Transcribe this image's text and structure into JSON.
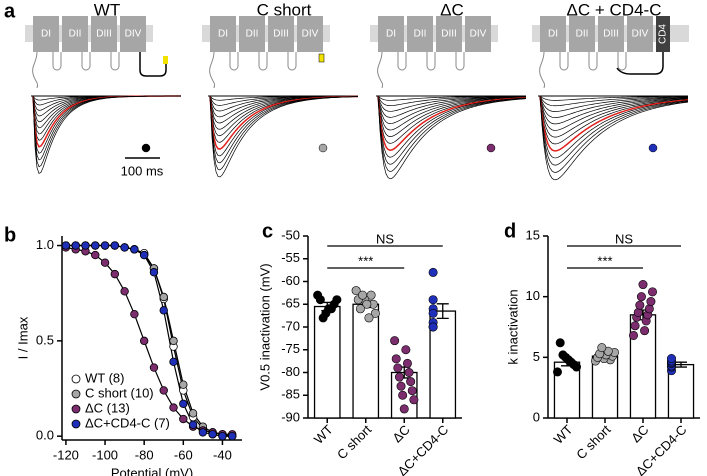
{
  "panel_a": {
    "label": "a",
    "scale_bar": "100 ms",
    "conditions": [
      {
        "title": "WT",
        "domains": [
          "DI",
          "DII",
          "DIII",
          "DIV"
        ],
        "color": "#000000"
      },
      {
        "title": "C short",
        "domains": [
          "DI",
          "DII",
          "DIII",
          "DIV"
        ],
        "color": "#a6a6a6"
      },
      {
        "title": "ΔC",
        "domains": [
          "DI",
          "DII",
          "DIII",
          "DIV"
        ],
        "color": "#7b2d6e"
      },
      {
        "title": "ΔC + CD4-C",
        "domains": [
          "DI",
          "DII",
          "DIII",
          "DIV"
        ],
        "extra_domain": "CD4",
        "color": "#1f2fb8"
      }
    ]
  },
  "chart_data": [
    {
      "type": "line",
      "panel_label": "b",
      "x_label": "Potential (mV)",
      "y_label": "I / Imax",
      "x": [
        -120,
        -115,
        -110,
        -105,
        -100,
        -95,
        -90,
        -85,
        -80,
        -75,
        -70,
        -65,
        -60,
        -55,
        -50,
        -45,
        -40,
        -35
      ],
      "series": [
        {
          "name": "WT (8)",
          "color": "#ffffff",
          "values": [
            1,
            1,
            1,
            1,
            1,
            1,
            0.99,
            0.98,
            0.96,
            0.88,
            0.72,
            0.47,
            0.24,
            0.1,
            0.04,
            0.01,
            0,
            0
          ]
        },
        {
          "name": "C short (10)",
          "color": "#a6a6a6",
          "values": [
            1,
            1,
            1,
            1,
            1,
            1,
            0.99,
            0.98,
            0.95,
            0.88,
            0.73,
            0.5,
            0.27,
            0.12,
            0.05,
            0.02,
            0.01,
            0
          ]
        },
        {
          "name": "ΔC (13)",
          "color": "#7b2d6e",
          "values": [
            0.99,
            0.98,
            0.97,
            0.95,
            0.91,
            0.85,
            0.76,
            0.64,
            0.5,
            0.36,
            0.24,
            0.15,
            0.09,
            0.05,
            0.03,
            0.02,
            0.01,
            0.01
          ]
        },
        {
          "name": "ΔC+CD4-C (7)",
          "color": "#1f2fb8",
          "values": [
            1,
            1,
            1,
            1,
            1,
            1,
            0.99,
            0.98,
            0.95,
            0.86,
            0.66,
            0.39,
            0.17,
            0.06,
            0.02,
            0.01,
            0,
            0
          ]
        }
      ],
      "xlim": [
        -122,
        -30
      ],
      "xticks": [
        -120,
        -100,
        -80,
        -60,
        -40
      ],
      "ylim": [
        -0.02,
        1.05
      ],
      "yticks": [
        {
          "value": 0,
          "label": "0.0"
        },
        {
          "value": 0.5,
          "label": "0.5"
        },
        {
          "value": 1,
          "label": "1.0"
        }
      ],
      "legend": "lower left"
    },
    {
      "type": "bar",
      "panel_label": "c",
      "y_label": "V0.5 inactivation (mV)",
      "categories": [
        "WT",
        "C short",
        "ΔC",
        "ΔC+CD4-C"
      ],
      "values": [
        -65.5,
        -65,
        -80,
        -66.5
      ],
      "errors": [
        0.9,
        0.7,
        1.2,
        1.6
      ],
      "colors": [
        "#000000",
        "#a6a6a6",
        "#7b2d6e",
        "#1f2fb8"
      ],
      "points": [
        [
          -63,
          -64,
          -65,
          -66,
          -66,
          -67,
          -68,
          -64
        ],
        [
          -62,
          -63,
          -64,
          -64,
          -65,
          -65,
          -66,
          -67,
          -68,
          -63
        ],
        [
          -73,
          -75,
          -77,
          -78,
          -79,
          -80,
          -81,
          -82,
          -83,
          -84,
          -85,
          -86,
          -88
        ],
        [
          -58,
          -64,
          -66,
          -67,
          -69,
          -70,
          -70
        ]
      ],
      "ylim": [
        -90,
        -50
      ],
      "yticks": [
        -90,
        -85,
        -80,
        -75,
        -70,
        -65,
        -60,
        -55,
        -50
      ],
      "comparisons": [
        {
          "groups": [
            "WT",
            "ΔC+CD4-C"
          ],
          "label": "NS"
        },
        {
          "groups": [
            "WT",
            "ΔC"
          ],
          "label": "***"
        }
      ]
    },
    {
      "type": "bar",
      "panel_label": "d",
      "y_label": "k inactivation",
      "categories": [
        "WT",
        "C short",
        "ΔC",
        "ΔC+CD4-C"
      ],
      "values": [
        4.6,
        5.1,
        8.5,
        4.4
      ],
      "errors": [
        0.3,
        0.15,
        0.4,
        0.2
      ],
      "colors": [
        "#000000",
        "#a6a6a6",
        "#7b2d6e",
        "#1f2fb8"
      ],
      "points": [
        [
          3.8,
          4.2,
          4.4,
          4.6,
          4.8,
          5,
          5.2,
          6.2
        ],
        [
          4.7,
          4.8,
          4.9,
          5,
          5.1,
          5.2,
          5.3,
          5.4,
          5.5,
          5.8
        ],
        [
          6.8,
          7.2,
          7.6,
          8,
          8.3,
          8.5,
          8.7,
          9,
          9.3,
          9.6,
          10,
          10.4,
          11
        ],
        [
          3.9,
          4.2,
          4.3,
          4.5,
          4.6,
          4.7,
          4.9
        ]
      ],
      "ylim": [
        0,
        15
      ],
      "yticks": [
        0,
        5,
        10,
        15
      ],
      "comparisons": [
        {
          "groups": [
            "WT",
            "ΔC+CD4-C"
          ],
          "label": "NS"
        },
        {
          "groups": [
            "WT",
            "ΔC"
          ],
          "label": "***"
        }
      ]
    }
  ]
}
